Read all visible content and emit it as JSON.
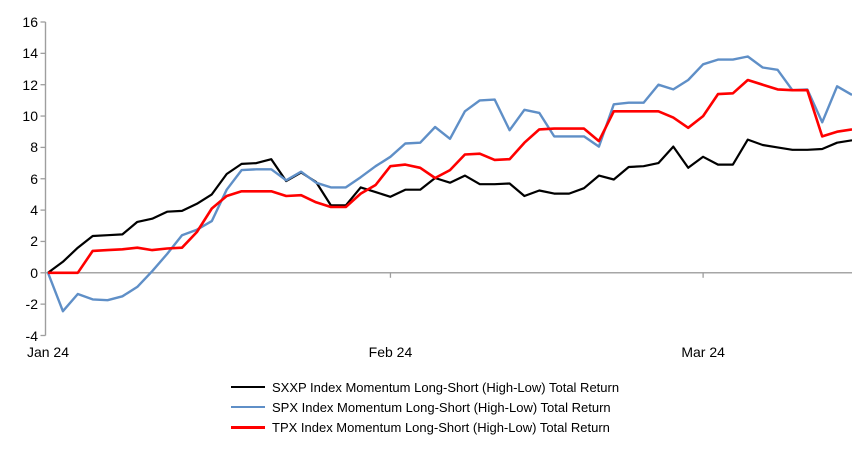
{
  "chart_data": {
    "type": "line",
    "title": "",
    "x_axis": {
      "tick_labels": [
        "Jan 24",
        "Feb 24",
        "Mar 24"
      ],
      "tick_day_index": [
        0,
        23,
        44
      ],
      "unit": "daily observations, Jan 2024 to mid-Mar 2024",
      "n_points": 55
    },
    "y_axis": {
      "tick_labels": [
        "16",
        "14",
        "12",
        "10",
        "8",
        "6",
        "4",
        "2",
        "0",
        "-2",
        "-4"
      ],
      "tick_values": [
        16,
        14,
        12,
        10,
        8,
        6,
        4,
        2,
        0,
        -2,
        -4
      ],
      "ylim": [
        -4,
        16
      ]
    },
    "grid": "horizontal zero-line only",
    "legend_position": "bottom",
    "series": [
      {
        "id": "sxxp",
        "name": "SXXP Index Momentum Long-Short (High-Low) Total Return",
        "color": "#000000",
        "stroke_width": 2.2,
        "values": [
          0,
          0.7,
          1.6,
          2.35,
          2.4,
          2.45,
          3.25,
          3.45,
          3.9,
          3.95,
          4.4,
          5.0,
          6.3,
          6.95,
          7.0,
          7.25,
          5.85,
          6.4,
          5.8,
          4.3,
          4.3,
          5.45,
          5.15,
          4.85,
          5.3,
          5.3,
          6.05,
          5.75,
          6.2,
          5.65,
          5.65,
          5.7,
          4.9,
          5.25,
          5.05,
          5.05,
          5.4,
          6.2,
          5.95,
          6.75,
          6.8,
          7.0,
          8.05,
          6.7,
          7.4,
          6.9,
          6.9,
          8.5,
          8.15,
          8.0,
          7.85,
          7.85,
          7.9,
          8.3,
          8.45
        ]
      },
      {
        "id": "spx",
        "name": "SPX Index Momentum Long-Short (High-Low) Total Return",
        "color": "#5F8FC7",
        "stroke_width": 2.4,
        "values": [
          0,
          -2.45,
          -1.35,
          -1.7,
          -1.75,
          -1.5,
          -0.9,
          0.1,
          1.2,
          2.4,
          2.75,
          3.3,
          5.3,
          6.55,
          6.6,
          6.6,
          5.9,
          6.45,
          5.75,
          5.45,
          5.45,
          6.1,
          6.8,
          7.4,
          8.25,
          8.3,
          9.3,
          8.55,
          10.3,
          11.0,
          11.05,
          9.1,
          10.4,
          10.2,
          8.7,
          8.7,
          8.7,
          8.05,
          10.75,
          10.85,
          10.85,
          12.0,
          11.7,
          12.3,
          13.3,
          13.6,
          13.6,
          13.8,
          13.1,
          12.95,
          11.65,
          11.7,
          9.6,
          11.9,
          11.35
        ]
      },
      {
        "id": "tpx",
        "name": "TPX Index Momentum Long-Short (High-Low) Total Return",
        "color": "#FF0000",
        "stroke_width": 2.6,
        "values": [
          0,
          0,
          0,
          1.4,
          1.45,
          1.5,
          1.6,
          1.45,
          1.55,
          1.6,
          2.6,
          4.1,
          4.9,
          5.2,
          5.2,
          5.2,
          4.9,
          4.95,
          4.5,
          4.2,
          4.2,
          5.05,
          5.6,
          6.8,
          6.9,
          6.7,
          6.05,
          6.55,
          7.55,
          7.6,
          7.2,
          7.25,
          8.3,
          9.15,
          9.2,
          9.2,
          9.2,
          8.4,
          10.3,
          10.3,
          10.3,
          10.3,
          9.9,
          9.25,
          10.0,
          11.4,
          11.45,
          12.3,
          12.0,
          11.7,
          11.65,
          11.65,
          8.7,
          9.0,
          9.15
        ]
      }
    ],
    "colors": {
      "axis": "#9E9E9E",
      "zero_line": "#A6A6A6",
      "text": "#000000",
      "background": "#FFFFFF"
    }
  }
}
